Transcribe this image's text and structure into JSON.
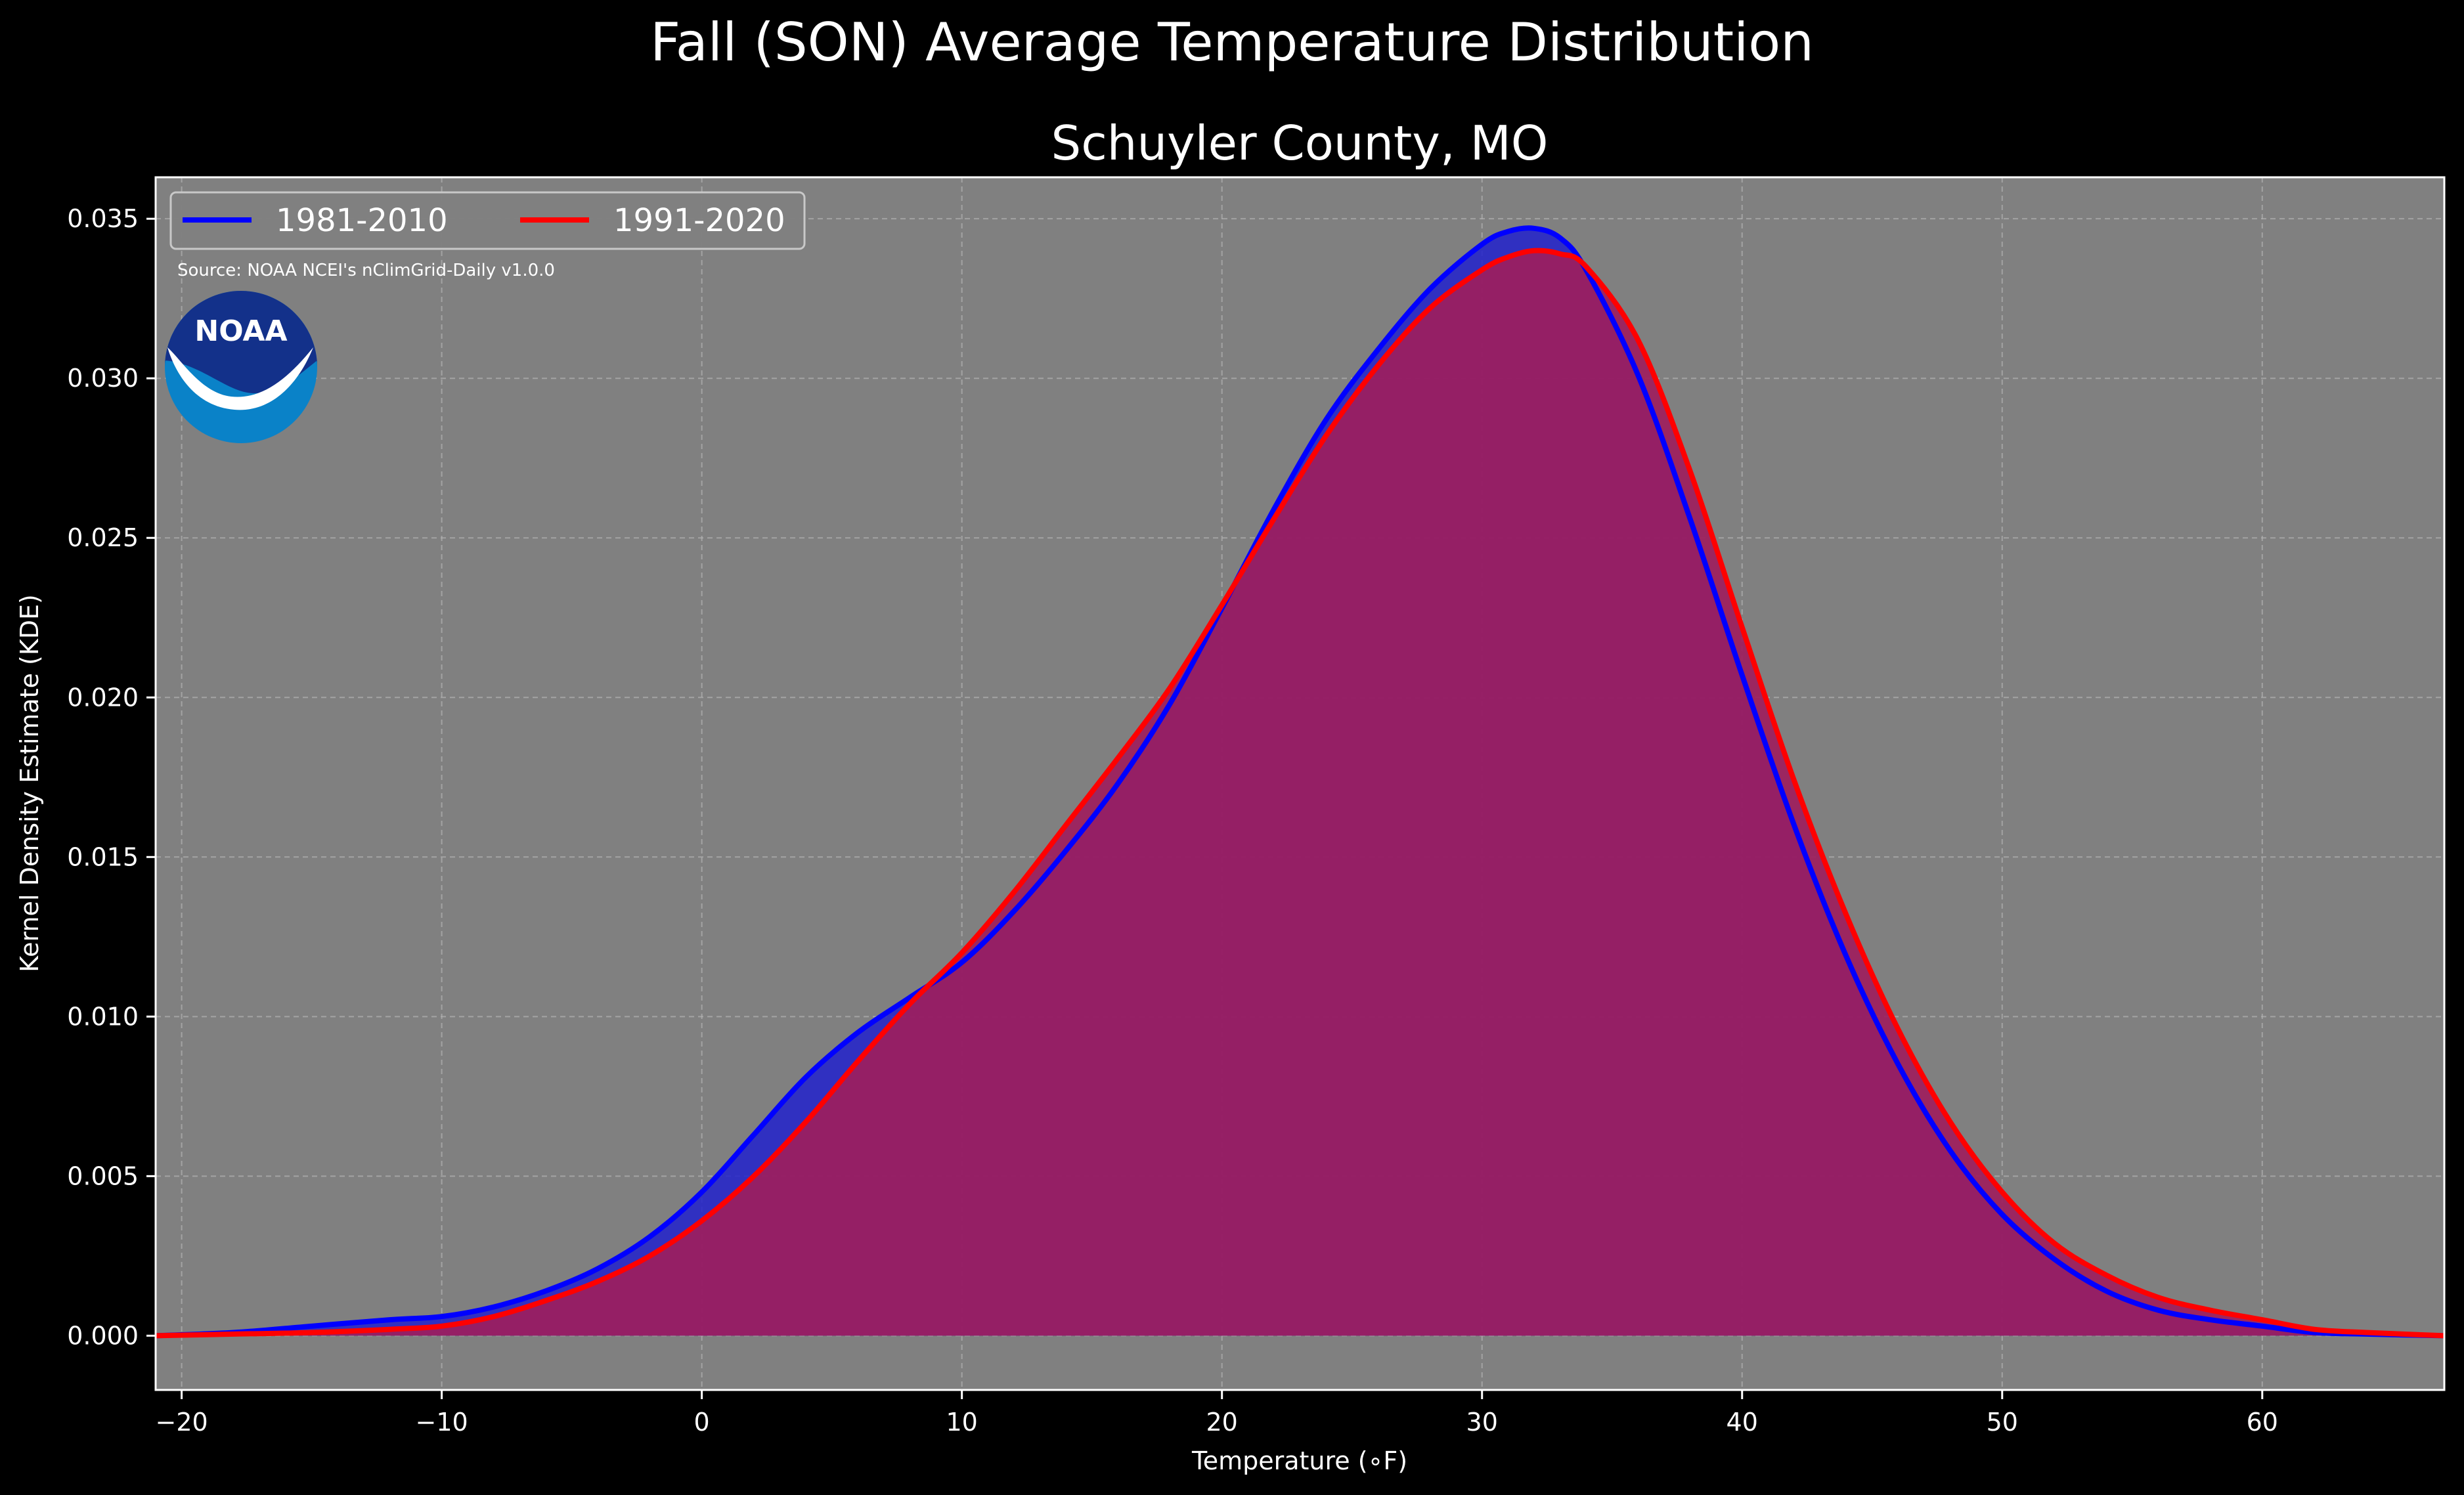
{
  "chart_data": {
    "type": "area",
    "title": "Fall (SON) Average Temperature Distribution",
    "subtitle": "Schuyler County, MO",
    "xlabel": "Temperature (∘F)",
    "ylabel": "Kernel Density Estimate (KDE)",
    "source": "Source: NOAA NCEI's nClimGrid-Daily v1.0.0",
    "logo_text": "NOAA",
    "xlim": [
      -21,
      67
    ],
    "ylim": [
      -0.0017,
      0.0363
    ],
    "x_ticks": [
      -20,
      -10,
      0,
      10,
      20,
      30,
      40,
      50,
      60
    ],
    "x_tick_labels": [
      "−20",
      "−10",
      "0",
      "10",
      "20",
      "30",
      "40",
      "50",
      "60"
    ],
    "y_ticks": [
      0.0,
      0.005,
      0.01,
      0.015,
      0.02,
      0.025,
      0.03,
      0.035
    ],
    "y_tick_labels": [
      "0.000",
      "0.005",
      "0.010",
      "0.015",
      "0.020",
      "0.025",
      "0.030",
      "0.035"
    ],
    "grid": true,
    "legend_position": "top-left",
    "colors": {
      "background": "#000000",
      "plot_background": "#808080",
      "series_1981": "#0000ff",
      "series_1991": "#ff0000",
      "fill_1981": "#2222cc",
      "fill_1991": "#9e1e5d"
    },
    "series": [
      {
        "name": "1981-2010",
        "x": [
          -21,
          -18,
          -15,
          -12,
          -10,
          -8,
          -6,
          -4,
          -2,
          0,
          2,
          4,
          6,
          8,
          10,
          12,
          14,
          16,
          18,
          20,
          22,
          24,
          26,
          28,
          30,
          31,
          32,
          33,
          34,
          36,
          38,
          40,
          42,
          44,
          46,
          48,
          50,
          52,
          54,
          56,
          58,
          60,
          62,
          64,
          67
        ],
        "values": [
          0.0,
          0.0001,
          0.0003,
          0.0005,
          0.0006,
          0.0009,
          0.0014,
          0.0021,
          0.0031,
          0.0045,
          0.0063,
          0.0081,
          0.0095,
          0.0106,
          0.0117,
          0.0133,
          0.0152,
          0.0173,
          0.0198,
          0.0228,
          0.0259,
          0.0287,
          0.0309,
          0.0328,
          0.0342,
          0.0346,
          0.0347,
          0.0344,
          0.0334,
          0.0301,
          0.0256,
          0.0207,
          0.016,
          0.0119,
          0.0085,
          0.0058,
          0.0038,
          0.0024,
          0.0014,
          0.0008,
          0.0005,
          0.0003,
          0.0001,
          5e-05,
          0.0
        ]
      },
      {
        "name": "1991-2020",
        "x": [
          -21,
          -18,
          -15,
          -12,
          -10,
          -8,
          -6,
          -4,
          -2,
          0,
          2,
          4,
          6,
          8,
          10,
          12,
          14,
          16,
          18,
          20,
          22,
          24,
          26,
          28,
          30,
          31,
          32,
          33,
          34,
          36,
          38,
          40,
          42,
          44,
          46,
          48,
          50,
          52,
          54,
          56,
          58,
          60,
          62,
          64,
          67
        ],
        "values": [
          0.0,
          5e-05,
          0.0001,
          0.0002,
          0.0003,
          0.0006,
          0.0011,
          0.0017,
          0.0025,
          0.0036,
          0.005,
          0.0067,
          0.0086,
          0.0104,
          0.012,
          0.0139,
          0.016,
          0.0181,
          0.0203,
          0.0229,
          0.0256,
          0.0282,
          0.0304,
          0.0322,
          0.0334,
          0.0338,
          0.034,
          0.0339,
          0.0335,
          0.0312,
          0.0271,
          0.0222,
          0.0174,
          0.0132,
          0.0096,
          0.0067,
          0.0045,
          0.0029,
          0.0019,
          0.0012,
          0.0008,
          0.0005,
          0.0002,
          0.0001,
          0.0
        ]
      }
    ]
  }
}
